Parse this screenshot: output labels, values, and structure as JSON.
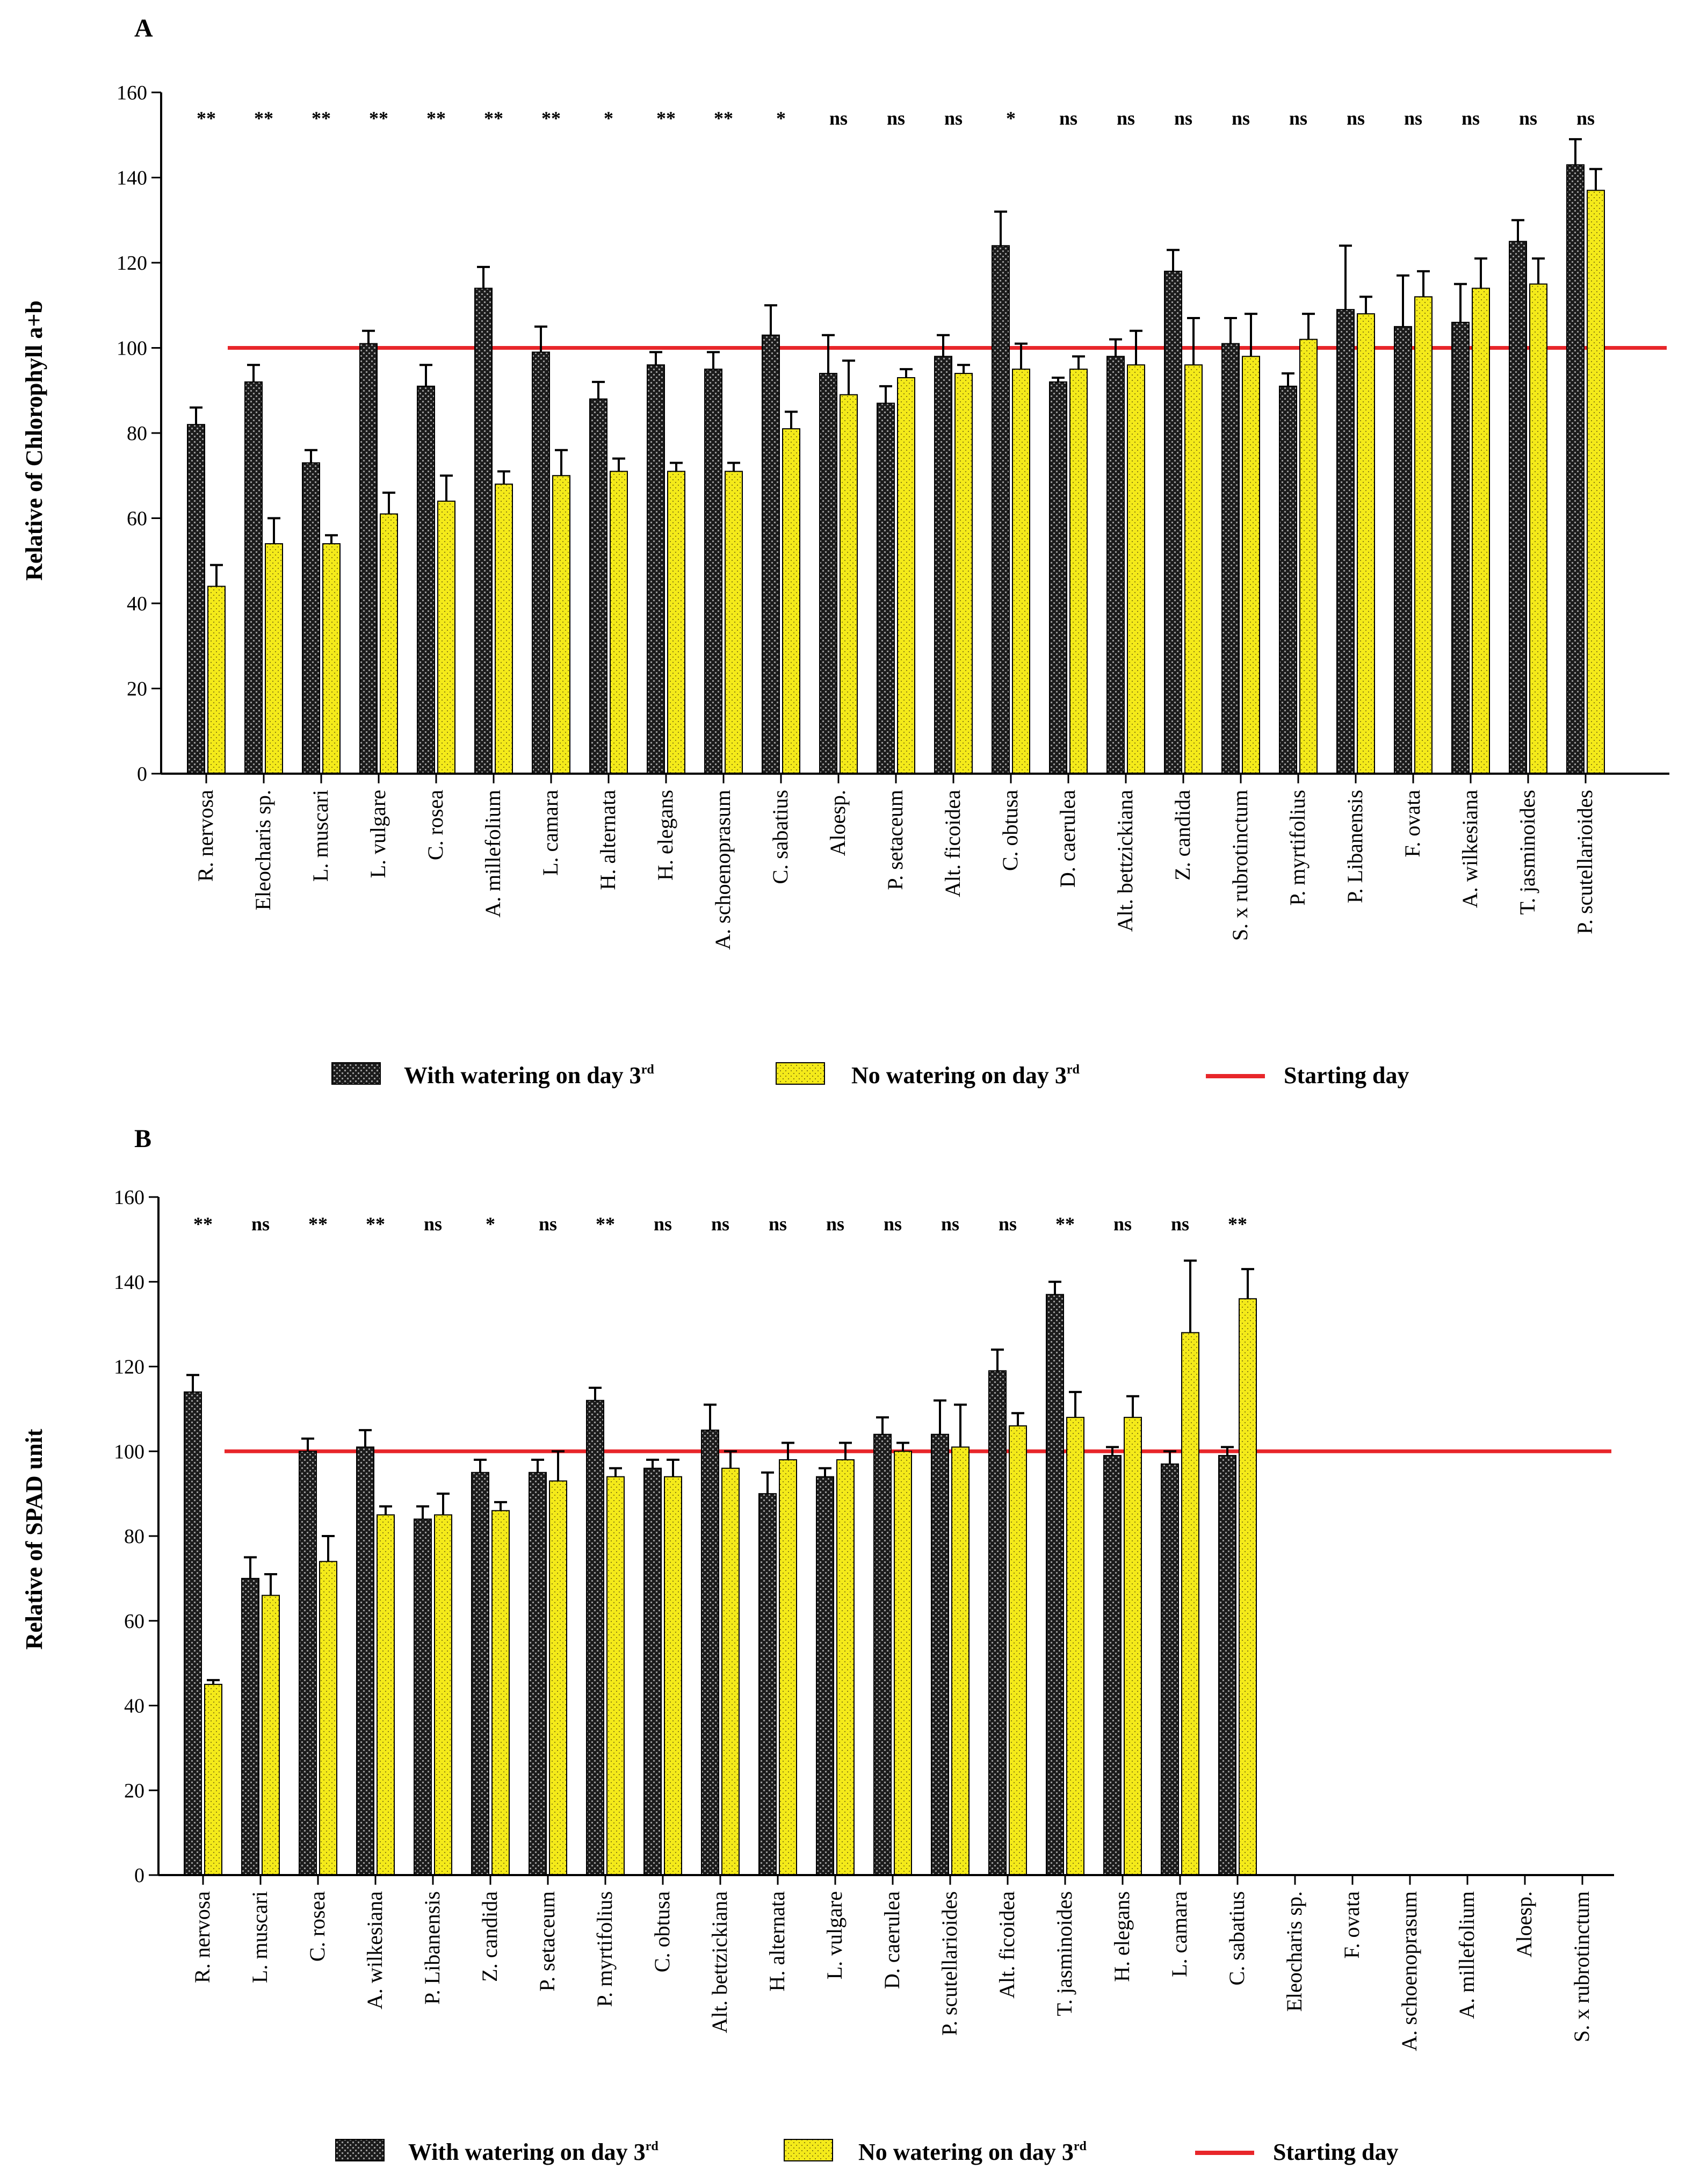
{
  "colors": {
    "watered": "#2a2a2a",
    "unwatered": "#f4ea1a",
    "start_line": "#e8262a",
    "axis": "#000000"
  },
  "legend": {
    "watered_label": "With watering on day 3",
    "unwatered_label": "No watering on day 3",
    "start_label": "Starting day",
    "sup": "rd"
  },
  "chart_data": [
    {
      "type": "bar",
      "panel": "A",
      "ylabel": "Relative of Chlorophyll a+b",
      "ylim": [
        0,
        160
      ],
      "yticks": [
        0,
        20,
        40,
        60,
        80,
        100,
        120,
        140,
        160
      ],
      "reference_line": 100,
      "categories": [
        "R. nervosa",
        "Eleocharis sp.",
        "L. muscari",
        "L. vulgare",
        "C. rosea",
        "A. millefolium",
        "L. camara",
        "H. alternata",
        "H. elegans",
        "A. schoenoprasum",
        "C. sabatius",
        "Aloesp.",
        "P. setaceum",
        "Alt. ficoidea",
        "C. obtusa",
        "D. caerulea",
        "Alt. bettzickiana",
        "Z. candida",
        "S. x rubrotinctum",
        "P. myrtifolius",
        "P. Libanensis",
        "F. ovata",
        "A. wilkesiana",
        "T. jasminoides",
        "P. scutellarioides"
      ],
      "significance": [
        "**",
        "**",
        "**",
        "**",
        "**",
        "**",
        "**",
        "*",
        "**",
        "**",
        "*",
        "ns",
        "ns",
        "ns",
        "*",
        "ns",
        "ns",
        "ns",
        "ns",
        "ns",
        "ns",
        "ns",
        "ns",
        "ns",
        "ns"
      ],
      "series": [
        {
          "name": "With watering on day 3rd",
          "values": [
            82,
            92,
            73,
            101,
            91,
            114,
            99,
            88,
            96,
            95,
            103,
            94,
            87,
            98,
            124,
            92,
            98,
            118,
            101,
            91,
            109,
            105,
            106,
            125,
            143
          ],
          "errors": [
            4,
            4,
            3,
            3,
            5,
            5,
            6,
            4,
            3,
            4,
            7,
            9,
            4,
            5,
            8,
            1,
            4,
            5,
            6,
            3,
            15,
            12,
            9,
            5,
            6
          ]
        },
        {
          "name": "No watering on day 3rd",
          "values": [
            44,
            54,
            54,
            61,
            64,
            68,
            70,
            71,
            71,
            71,
            81,
            89,
            93,
            94,
            95,
            95,
            96,
            96,
            98,
            102,
            108,
            112,
            114,
            115,
            137
          ],
          "errors": [
            5,
            6,
            2,
            5,
            6,
            3,
            6,
            3,
            2,
            2,
            4,
            8,
            2,
            2,
            6,
            3,
            8,
            11,
            10,
            6,
            4,
            6,
            7,
            6,
            5
          ]
        }
      ]
    },
    {
      "type": "bar",
      "panel": "B",
      "ylabel": "Relative of  SPAD unit",
      "ylim": [
        0,
        160
      ],
      "yticks": [
        0,
        20,
        40,
        60,
        80,
        100,
        120,
        140,
        160
      ],
      "reference_line": 100,
      "categories": [
        "R. nervosa",
        "L. muscari",
        "C. rosea",
        "A. wilkesiana",
        "P. Libanensis",
        "Z. candida",
        "P. setaceum",
        "P. myrtifolius",
        "C. obtusa",
        "Alt. bettzickiana",
        "H. alternata",
        "L. vulgare",
        "D. caerulea",
        "P. scutellarioides",
        "Alt. ficoidea",
        "T. jasminoides",
        "H. elegans",
        "L. camara",
        "C. sabatius",
        "Eleocharis sp.",
        "F. ovata",
        "A. schoenoprasum",
        "A. millefolium",
        "Aloesp.",
        "S. x rubrotinctum"
      ],
      "significance": [
        "**",
        "ns",
        "**",
        "**",
        "ns",
        "*",
        "ns",
        "**",
        "ns",
        "ns",
        "ns",
        "ns",
        "ns",
        "ns",
        "ns",
        "**",
        "ns",
        "ns",
        "**",
        "",
        "",
        "",
        "",
        "",
        ""
      ],
      "series": [
        {
          "name": "With watering on day 3rd",
          "values": [
            114,
            70,
            100,
            101,
            84,
            95,
            95,
            112,
            96,
            105,
            90,
            94,
            104,
            104,
            119,
            137,
            99,
            97,
            99,
            null,
            null,
            null,
            null,
            null,
            null
          ],
          "errors": [
            4,
            5,
            3,
            4,
            3,
            3,
            3,
            3,
            2,
            6,
            5,
            2,
            4,
            8,
            5,
            3,
            2,
            3,
            2,
            null,
            null,
            null,
            null,
            null,
            null
          ]
        },
        {
          "name": "No watering on day 3rd",
          "values": [
            45,
            66,
            74,
            85,
            85,
            86,
            93,
            94,
            94,
            96,
            98,
            98,
            100,
            101,
            106,
            108,
            108,
            128,
            136,
            null,
            null,
            null,
            null,
            null,
            null
          ],
          "errors": [
            1,
            5,
            6,
            2,
            5,
            2,
            7,
            2,
            4,
            4,
            4,
            4,
            2,
            10,
            3,
            6,
            5,
            17,
            7,
            null,
            null,
            null,
            null,
            null,
            null
          ]
        }
      ]
    }
  ]
}
